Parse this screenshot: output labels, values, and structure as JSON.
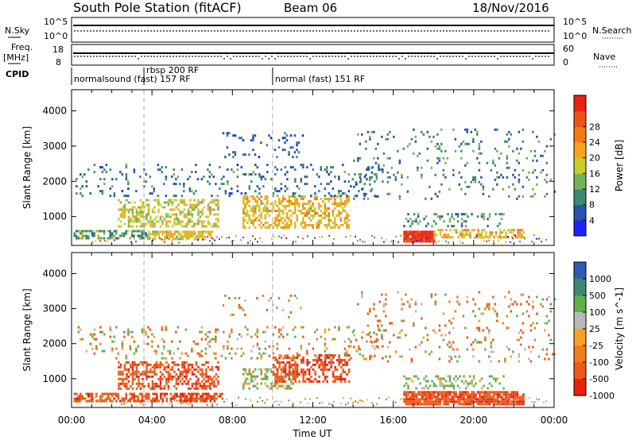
{
  "header": {
    "title": "South Pole Station (fitACF)",
    "beam": "Beam 06",
    "date": "18/Nov/2016"
  },
  "top_panels": {
    "nsky_label": "N.Sky",
    "nsky_ticks": [
      "10^5",
      "10^0"
    ],
    "nsearch_label": "N.Search",
    "nsearch_ticks": [
      "10^5",
      "10^0"
    ],
    "freq_label_1": "Freq.",
    "freq_label_2": "[MHz]",
    "freq_ticks": [
      "18",
      "8"
    ],
    "nave_label": "Nave",
    "nave_ticks": [
      "60",
      "0"
    ],
    "cpid_label": "CPID"
  },
  "cpid_segments": [
    {
      "label": "normalsound (fast) 157 RF",
      "start_hour": 0,
      "end_hour": 3.6
    },
    {
      "label": "rbsp 200 RF",
      "start_hour": 3.6,
      "end_hour": 10.0
    },
    {
      "label": "normal (fast) 151 RF",
      "start_hour": 10.0,
      "end_hour": 24.0
    }
  ],
  "colors": {
    "power_scale": [
      "#1e22ff",
      "#2753a8",
      "#3a8a70",
      "#74b25a",
      "#c9cc2b",
      "#f7a51d",
      "#f17a16",
      "#ec5212",
      "#e8220e"
    ],
    "velocity_scale": [
      "#2d5bb0",
      "#3b8a6c",
      "#5fb04a",
      "#b9b9b9",
      "#f7a227",
      "#f47d1b",
      "#ef5815",
      "#e7200e"
    ]
  },
  "chart_data": [
    {
      "type": "heatmap",
      "title": "",
      "xlabel": "Time UT",
      "ylabel": "Slant Range [km]",
      "x_ticks": [
        "00:00",
        "04:00",
        "08:00",
        "12:00",
        "16:00",
        "20:00",
        "00:00"
      ],
      "y_ticks": [
        1000,
        2000,
        3000,
        4000
      ],
      "xlim_hours": [
        0,
        24
      ],
      "ylim_km": [
        180,
        4600
      ],
      "colorbar": {
        "label": "Power [dB]",
        "ticks": [
          4,
          8,
          12,
          16,
          20,
          24,
          28
        ],
        "range": [
          0,
          30
        ]
      },
      "regions": [
        {
          "t0": 0.1,
          "t1": 3.8,
          "r0": 380,
          "r1": 620,
          "value": 10,
          "density": 0.6
        },
        {
          "t0": 3.8,
          "t1": 7.0,
          "r0": 380,
          "r1": 600,
          "value": 16,
          "density": 0.7
        },
        {
          "t0": 2.3,
          "t1": 7.3,
          "r0": 700,
          "r1": 1500,
          "value": 15,
          "density": 0.45
        },
        {
          "t0": 8.5,
          "t1": 13.8,
          "r0": 700,
          "r1": 1600,
          "value": 17,
          "density": 0.5
        },
        {
          "t0": 0.2,
          "t1": 15.5,
          "r0": 1600,
          "r1": 2500,
          "value": 7,
          "density": 0.12
        },
        {
          "t0": 7.5,
          "t1": 11.5,
          "r0": 2700,
          "r1": 3400,
          "value": 6,
          "density": 0.1
        },
        {
          "t0": 16.5,
          "t1": 18.0,
          "r0": 300,
          "r1": 600,
          "value": 29,
          "density": 0.95
        },
        {
          "t0": 18.0,
          "t1": 22.5,
          "r0": 380,
          "r1": 650,
          "value": 18,
          "density": 0.6
        },
        {
          "t0": 16.5,
          "t1": 21.5,
          "r0": 700,
          "r1": 1100,
          "value": 9,
          "density": 0.25
        },
        {
          "t0": 14.0,
          "t1": 24.0,
          "r0": 1500,
          "r1": 3500,
          "value": 8,
          "density": 0.08
        }
      ]
    },
    {
      "type": "heatmap",
      "title": "",
      "xlabel": "Time UT",
      "ylabel": "Slant Range [km]",
      "x_ticks": [
        "00:00",
        "04:00",
        "08:00",
        "12:00",
        "16:00",
        "20:00",
        "00:00"
      ],
      "y_ticks": [
        1000,
        2000,
        3000,
        4000
      ],
      "xlim_hours": [
        0,
        24
      ],
      "ylim_km": [
        180,
        4600
      ],
      "colorbar": {
        "label": "Velocity [m s^-1]",
        "ticks": [
          1000,
          500,
          100,
          25,
          -25,
          -100,
          -500,
          -1000
        ],
        "range": [
          -1200,
          1200
        ]
      },
      "regions": [
        {
          "t0": 0.1,
          "t1": 3.8,
          "r0": 380,
          "r1": 600,
          "value": -300,
          "density": 0.65
        },
        {
          "t0": 3.8,
          "t1": 7.5,
          "r0": 380,
          "r1": 600,
          "value": -450,
          "density": 0.7
        },
        {
          "t0": 2.3,
          "t1": 7.3,
          "r0": 700,
          "r1": 1500,
          "value": -400,
          "density": 0.5
        },
        {
          "t0": 8.5,
          "t1": 11.0,
          "r0": 700,
          "r1": 1300,
          "value": 150,
          "density": 0.45
        },
        {
          "t0": 10.0,
          "t1": 13.8,
          "r0": 900,
          "r1": 1700,
          "value": -450,
          "density": 0.5
        },
        {
          "t0": 0.2,
          "t1": 15.5,
          "r0": 1600,
          "r1": 2500,
          "value": 0,
          "density": 0.12
        },
        {
          "t0": 7.5,
          "t1": 11.5,
          "r0": 2700,
          "r1": 3400,
          "value": 0,
          "density": 0.1
        },
        {
          "t0": 16.5,
          "t1": 22.5,
          "r0": 300,
          "r1": 650,
          "value": -400,
          "density": 0.85
        },
        {
          "t0": 16.5,
          "t1": 21.5,
          "r0": 700,
          "r1": 1100,
          "value": 200,
          "density": 0.25
        },
        {
          "t0": 14.0,
          "t1": 24.0,
          "r0": 1500,
          "r1": 3500,
          "value": -60,
          "density": 0.08
        }
      ]
    }
  ]
}
